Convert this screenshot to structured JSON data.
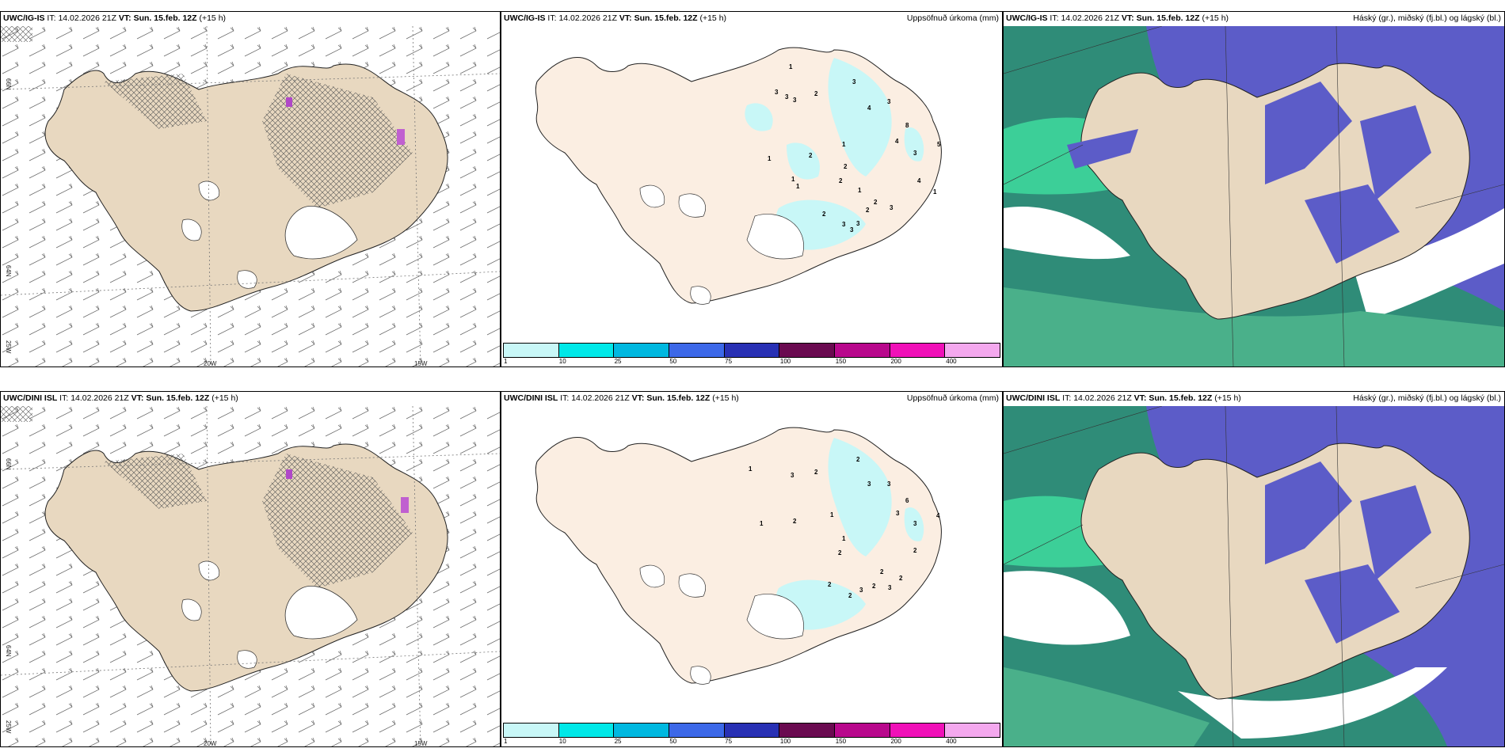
{
  "panels": {
    "top_left": {
      "model": "UWC/IG-IS",
      "it_label": "IT:",
      "it_value": "14.02.2026 21Z",
      "vt_label": "VT:",
      "vt_value": "Sun. 15.feb. 12Z",
      "lead": "(+15 h)",
      "right_title": ""
    },
    "top_mid": {
      "model": "UWC/IG-IS",
      "it_label": "IT:",
      "it_value": "14.02.2026 21Z",
      "vt_label": "VT:",
      "vt_value": "Sun. 15.feb. 12Z",
      "lead": "(+15 h)",
      "right_title": "Uppsöfnuð úrkoma (mm)"
    },
    "top_right": {
      "model": "UWC/IG-IS",
      "it_label": "IT:",
      "it_value": "14.02.2026 21Z",
      "vt_label": "VT:",
      "vt_value": "Sun. 15.feb. 12Z",
      "lead": "(+15 h)",
      "right_title": "Háský (gr.), miðský (fj.bl.) og lágský (bl.)"
    },
    "bot_left": {
      "model": "UWC/DINI ISL",
      "it_label": "IT:",
      "it_value": "14.02.2026 21Z",
      "vt_label": "VT:",
      "vt_value": "Sun. 15.feb. 12Z",
      "lead": "(+15 h)",
      "right_title": ""
    },
    "bot_mid": {
      "model": "UWC/DINI ISL",
      "it_label": "IT:",
      "it_value": "14.02.2026 21Z",
      "vt_label": "VT:",
      "vt_value": "Sun. 15.feb. 12Z",
      "lead": "(+15 h)",
      "right_title": "Uppsöfnuð úrkoma (mm)"
    },
    "bot_right": {
      "model": "UWC/DINI ISL",
      "it_label": "IT:",
      "it_value": "14.02.2026 21Z",
      "vt_label": "VT:",
      "vt_value": "Sun. 15.feb. 12Z",
      "lead": "(+15 h)",
      "right_title": "Háský (gr.), miðský (fj.bl.) og lágský (bl.)"
    }
  },
  "axes": {
    "lat_66": "66N",
    "lat_64": "64N",
    "lon_20": "20W",
    "lon_15": "15W",
    "lon_25": "25W"
  },
  "colorbar": {
    "ticks": [
      "1",
      "10",
      "25",
      "50",
      "75",
      "100",
      "150",
      "200",
      "400"
    ],
    "colors": [
      "#c8f7f7",
      "#00e8e8",
      "#00b8e0",
      "#3c68e8",
      "#2830b4",
      "#6a0a50",
      "#b8088c",
      "#f010b8",
      "#f4a8ee"
    ]
  },
  "precip_labels_top": [
    "1",
    "3",
    "3",
    "3",
    "2",
    "3",
    "4",
    "3",
    "8",
    "4",
    "3",
    "5",
    "1",
    "1",
    "2",
    "2",
    "1",
    "2",
    "1",
    "1",
    "4",
    "2",
    "3",
    "2",
    "3",
    "3",
    "1",
    "2",
    "3"
  ],
  "precip_labels_bottom": [
    "1",
    "3",
    "2",
    "2",
    "3",
    "3",
    "6",
    "3",
    "4",
    "2",
    "1",
    "1",
    "1",
    "2",
    "3",
    "2",
    "2",
    "2",
    "2",
    "3",
    "2",
    "2",
    "3"
  ],
  "colors": {
    "land": "#e8d8c0",
    "land_light": "#fbeee2",
    "precip": "#c8f7f7",
    "cloud_dark": "#2f8c78",
    "cloud_high": "#5c5cc8",
    "cloud_green": "#3ccf98",
    "ocean_white": "#ffffff"
  }
}
